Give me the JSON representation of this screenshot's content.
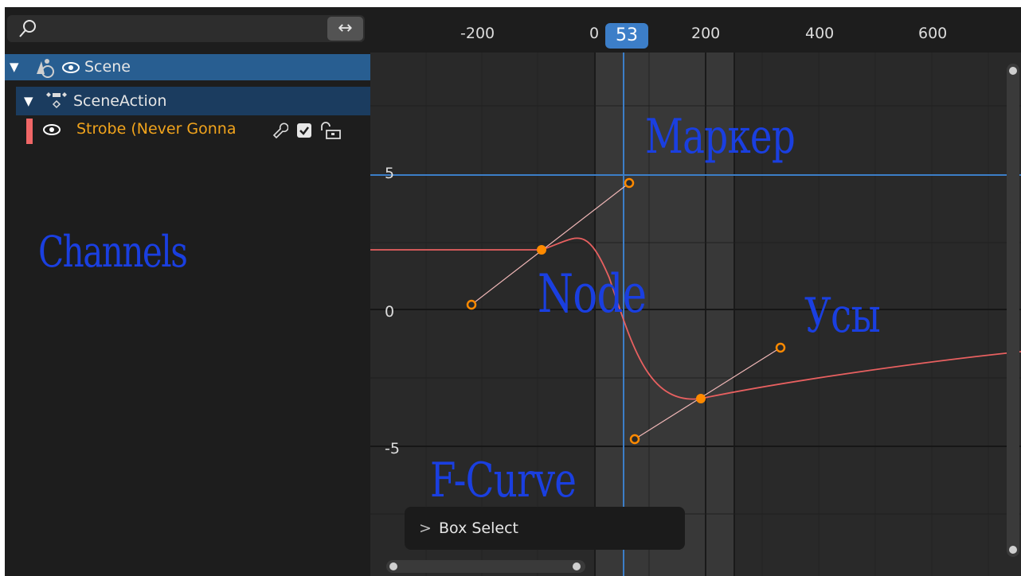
{
  "channels": {
    "search": {
      "placeholder": "",
      "value": ""
    },
    "swap_icon": "↔",
    "rows": [
      {
        "label": "Scene",
        "icon": "scene-icon"
      },
      {
        "label": "SceneAction",
        "icon": "action-icon"
      },
      {
        "label": "Strobe (Never Gonna",
        "icon": "fcurve-icon",
        "color": "#f06767"
      }
    ],
    "annotation": "Channels"
  },
  "graph": {
    "ruler_ticks": [
      "-200",
      "0",
      "200",
      "400",
      "600"
    ],
    "current_frame": "53",
    "y_ticks": [
      "5",
      "0",
      "-5"
    ],
    "annotations": {
      "marker": "Маркер",
      "node": "Node",
      "whiskers": "Усы",
      "fcurve": "F-Curve"
    },
    "operator_panel": {
      "chevron": ">",
      "label": "Box Select"
    },
    "colors": {
      "curve": "#e86060",
      "handle_point": "#ff8a00",
      "handle_line": "#f2b8b8",
      "frame_line": "#3c7ec8",
      "annotation": "#1a3fe0"
    }
  }
}
